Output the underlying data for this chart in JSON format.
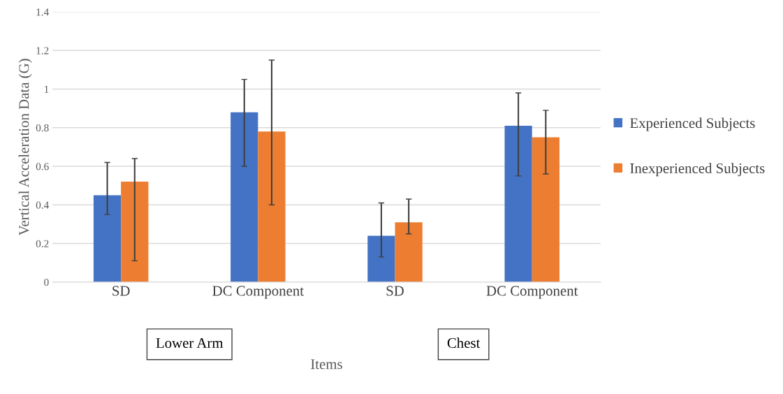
{
  "chart_data": {
    "type": "bar",
    "ylabel": "Vertical Acceleration Data (G)",
    "xlabel": "Items",
    "categories": [
      "SD",
      "DC Component",
      "SD",
      "DC Component"
    ],
    "series": [
      {
        "name": "Experienced Subjects",
        "color": "#4472c4",
        "values": [
          0.45,
          0.88,
          0.24,
          0.81
        ],
        "errors": [
          [
            0.35,
            0.62
          ],
          [
            0.6,
            1.05
          ],
          [
            0.13,
            0.41
          ],
          [
            0.55,
            0.98
          ]
        ]
      },
      {
        "name": "Inexperienced Subjects",
        "color": "#ed7d31",
        "values": [
          0.52,
          0.78,
          0.31,
          0.75
        ],
        "errors": [
          [
            0.11,
            0.64
          ],
          [
            0.4,
            1.15
          ],
          [
            0.25,
            0.43
          ],
          [
            0.56,
            0.89
          ]
        ]
      }
    ],
    "ylim": [
      0,
      1.4
    ],
    "yticks": [
      0,
      0.2,
      0.4,
      0.6,
      0.8,
      1,
      1.2,
      1.4
    ],
    "grid": "y",
    "legend": "right",
    "annotations": [
      "Lower Arm",
      "Chest"
    ]
  }
}
